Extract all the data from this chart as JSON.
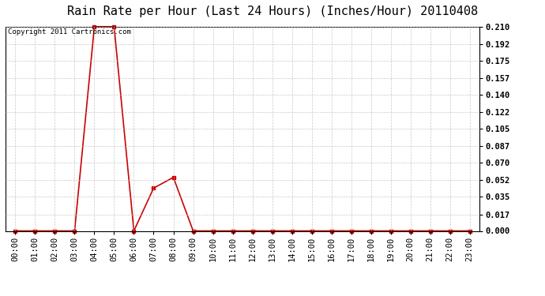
{
  "title": "Rain Rate per Hour (Last 24 Hours) (Inches/Hour) 20110408",
  "copyright_text": "Copyright 2011 Cartronics.com",
  "x_labels": [
    "00:00",
    "01:00",
    "02:00",
    "03:00",
    "04:00",
    "05:00",
    "06:00",
    "07:00",
    "08:00",
    "09:00",
    "10:00",
    "11:00",
    "12:00",
    "13:00",
    "14:00",
    "15:00",
    "16:00",
    "17:00",
    "18:00",
    "19:00",
    "20:00",
    "21:00",
    "22:00",
    "23:00"
  ],
  "y_values": [
    0.0,
    0.0,
    0.0,
    0.0,
    0.21,
    0.21,
    0.0,
    0.044,
    0.055,
    0.0,
    0.0,
    0.0,
    0.0,
    0.0,
    0.0,
    0.0,
    0.0,
    0.0,
    0.0,
    0.0,
    0.0,
    0.0,
    0.0,
    0.0
  ],
  "yticks": [
    0.0,
    0.017,
    0.035,
    0.052,
    0.07,
    0.087,
    0.105,
    0.122,
    0.14,
    0.157,
    0.175,
    0.192,
    0.21
  ],
  "ylim": [
    0.0,
    0.21
  ],
  "line_color": "#cc0000",
  "marker": "s",
  "marker_size": 2.5,
  "line_width": 1.2,
  "background_color": "#ffffff",
  "grid_color": "#bbbbbb",
  "title_fontsize": 11,
  "copyright_fontsize": 6.5,
  "tick_fontsize": 7.5,
  "fig_width": 6.9,
  "fig_height": 3.75,
  "dpi": 100
}
